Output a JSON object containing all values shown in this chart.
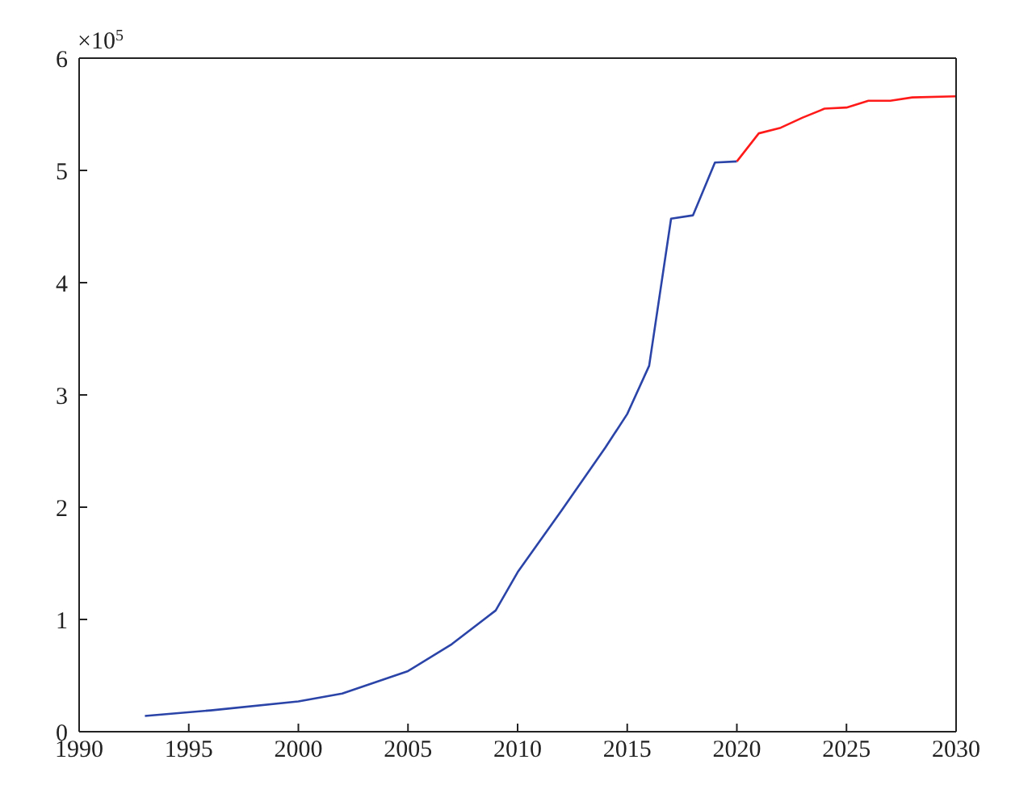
{
  "chart_data": {
    "type": "line",
    "annotations": [
      "×10$^{5}$"
    ],
    "series": [
      {
        "color": "#2a44a8",
        "x": [
          1993,
          1996,
          2000,
          2002,
          2005,
          2007,
          2009,
          2010,
          2012,
          2013,
          2014,
          2015,
          2016,
          2017,
          2018,
          2019,
          2020
        ],
        "values": [
          0.14,
          0.19,
          0.27,
          0.34,
          0.54,
          0.78,
          1.08,
          1.42,
          1.97,
          2.25,
          2.53,
          2.83,
          3.26,
          4.57,
          4.6,
          5.07,
          5.08
        ]
      },
      {
        "color": "#ff1a1a",
        "x": [
          2020,
          2021,
          2022,
          2023,
          2024,
          2025,
          2026,
          2027,
          2028,
          2030
        ],
        "values": [
          5.08,
          5.33,
          5.38,
          5.47,
          5.55,
          5.56,
          5.62,
          5.62,
          5.65,
          5.66
        ]
      }
    ],
    "xlim": [
      1990,
      2030
    ],
    "xticks": [
      1990,
      1995,
      2000,
      2005,
      2010,
      2015,
      2020,
      2025,
      2030
    ],
    "ylim": [
      0,
      6
    ],
    "yticks": [
      0,
      1,
      2,
      3,
      4,
      5,
      6
    ],
    "marker": "none",
    "line_style": "solid"
  }
}
